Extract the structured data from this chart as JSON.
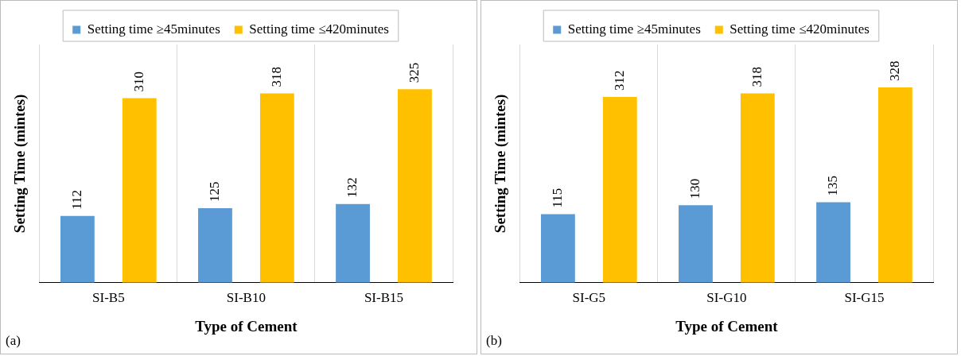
{
  "chart_data": [
    {
      "type": "bar",
      "categories": [
        "SI-B5",
        "SI-B10",
        "SI-B15"
      ],
      "xlabel": "Type of Cement",
      "ylabel": "Setting Time (mintes)",
      "series": [
        {
          "name": "Setting time ≥45minutes",
          "color": "#5b9bd5",
          "values": [
            112,
            125,
            132
          ]
        },
        {
          "name": "Setting time ≤420minutes",
          "color": "#ffc000",
          "values": [
            310,
            318,
            325
          ]
        }
      ],
      "data_labels": true,
      "grid": "x",
      "legend": "top",
      "annotations": [
        "(a)"
      ]
    },
    {
      "type": "bar",
      "categories": [
        "SI-G5",
        "SI-G10",
        "SI-G15"
      ],
      "xlabel": "Type of Cement",
      "ylabel": "Setting Time (mintes)",
      "series": [
        {
          "name": "Setting time ≥45minutes",
          "color": "#5b9bd5",
          "values": [
            115,
            130,
            135
          ]
        },
        {
          "name": "Setting time ≤420minutes",
          "color": "#ffc000",
          "values": [
            312,
            318,
            328
          ]
        }
      ],
      "data_labels": true,
      "grid": "x",
      "legend": "top",
      "annotations": [
        "(b)"
      ]
    }
  ]
}
